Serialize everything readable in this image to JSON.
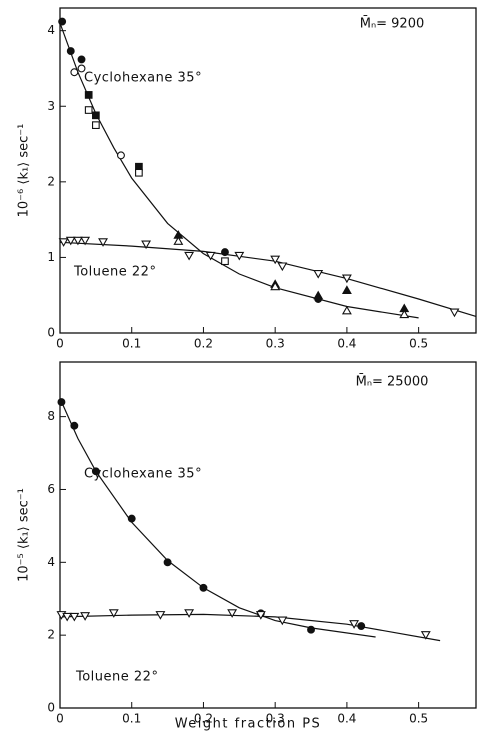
{
  "chart_data": [
    {
      "type": "scatter",
      "annotation": "M̄ₙ= 9200",
      "ylabel": "10⁻⁶ ⟨k₁⟩ sec⁻¹",
      "xlim": [
        0,
        0.58
      ],
      "ylim": [
        0,
        4.3
      ],
      "xticks": [
        0,
        0.1,
        0.2,
        0.3,
        0.4,
        0.5
      ],
      "yticks": [
        0,
        1,
        2,
        3,
        4
      ],
      "series": [
        {
          "name": "Cyclohexane 35°",
          "color": "#111",
          "x": [
            0.003,
            0.015,
            0.02,
            0.03,
            0.03,
            0.04,
            0.04,
            0.05,
            0.05,
            0.085,
            0.11,
            0.11,
            0.165,
            0.165,
            0.23,
            0.23,
            0.3,
            0.3,
            0.36,
            0.36,
            0.4,
            0.4,
            0.48,
            0.48
          ],
          "values": [
            4.12,
            3.73,
            3.45,
            3.62,
            3.5,
            3.15,
            2.95,
            2.88,
            2.75,
            2.35,
            2.2,
            2.12,
            1.3,
            1.22,
            1.07,
            0.95,
            0.65,
            0.62,
            0.5,
            0.45,
            0.57,
            0.3,
            0.33,
            0.25
          ],
          "markers": [
            "filled-circle",
            "filled-circle",
            "open-circle",
            "filled-circle",
            "open-circle",
            "filled-square",
            "open-square",
            "filled-square",
            "open-square",
            "open-circle",
            "filled-square",
            "open-square",
            "filled-triangle",
            "open-triangle",
            "filled-circle",
            "open-square",
            "filled-triangle",
            "open-triangle",
            "filled-triangle",
            "filled-circle",
            "filled-triangle",
            "open-triangle",
            "filled-triangle",
            "open-triangle"
          ],
          "fit_x": [
            0,
            0.025,
            0.05,
            0.075,
            0.1,
            0.15,
            0.2,
            0.25,
            0.3,
            0.4,
            0.5
          ],
          "fit_y": [
            4.1,
            3.45,
            2.9,
            2.45,
            2.05,
            1.45,
            1.05,
            0.78,
            0.6,
            0.35,
            0.2
          ]
        },
        {
          "name": "Toluene 22°",
          "color": "#111",
          "x": [
            0.005,
            0.015,
            0.025,
            0.035,
            0.06,
            0.12,
            0.18,
            0.21,
            0.25,
            0.3,
            0.31,
            0.36,
            0.4,
            0.55
          ],
          "values": [
            1.2,
            1.22,
            1.22,
            1.22,
            1.2,
            1.17,
            1.02,
            1.02,
            1.02,
            0.97,
            0.88,
            0.78,
            0.72,
            0.27
          ],
          "markers": [
            "open-invtriangle",
            "open-invtriangle",
            "open-invtriangle",
            "open-invtriangle",
            "open-invtriangle",
            "open-invtriangle",
            "open-invtriangle",
            "open-invtriangle",
            "open-invtriangle",
            "open-invtriangle",
            "open-invtriangle",
            "open-invtriangle",
            "open-invtriangle",
            "open-invtriangle"
          ],
          "fit_x": [
            0,
            0.1,
            0.2,
            0.3,
            0.4,
            0.5,
            0.58
          ],
          "fit_y": [
            1.2,
            1.15,
            1.08,
            0.95,
            0.72,
            0.45,
            0.22
          ]
        }
      ]
    },
    {
      "type": "scatter",
      "annotation": "M̄ₙ= 25000",
      "ylabel": "10⁻⁵ ⟨k₁⟩ sec⁻¹",
      "xlabel": "Weight fraction PS",
      "xlim": [
        0,
        0.58
      ],
      "ylim": [
        0,
        9.5
      ],
      "xticks": [
        0,
        0.1,
        0.2,
        0.3,
        0.4,
        0.5
      ],
      "yticks": [
        0,
        2,
        4,
        6,
        8
      ],
      "series": [
        {
          "name": "Cyclohexane 35°",
          "color": "#111",
          "x": [
            0.002,
            0.02,
            0.05,
            0.1,
            0.15,
            0.2,
            0.28,
            0.35,
            0.42
          ],
          "values": [
            8.4,
            7.75,
            6.5,
            5.2,
            4.0,
            3.3,
            2.6,
            2.15,
            2.25
          ],
          "markers": [
            "filled-circle",
            "filled-circle",
            "filled-circle",
            "filled-circle",
            "filled-circle",
            "filled-circle",
            "filled-circle",
            "filled-circle",
            "filled-circle"
          ],
          "fit_x": [
            0,
            0.025,
            0.05,
            0.1,
            0.15,
            0.2,
            0.25,
            0.3,
            0.35,
            0.44
          ],
          "fit_y": [
            8.5,
            7.4,
            6.5,
            5.1,
            4.05,
            3.3,
            2.75,
            2.4,
            2.2,
            1.95
          ]
        },
        {
          "name": "Toluene 22°",
          "color": "#111",
          "x": [
            0.002,
            0.01,
            0.02,
            0.035,
            0.075,
            0.14,
            0.18,
            0.24,
            0.28,
            0.31,
            0.41,
            0.51
          ],
          "values": [
            2.55,
            2.5,
            2.5,
            2.52,
            2.6,
            2.55,
            2.6,
            2.6,
            2.55,
            2.4,
            2.3,
            2.0
          ],
          "markers": [
            "open-invtriangle",
            "open-invtriangle",
            "open-invtriangle",
            "open-invtriangle",
            "open-invtriangle",
            "open-invtriangle",
            "open-invtriangle",
            "open-invtriangle",
            "open-invtriangle",
            "open-invtriangle",
            "open-invtriangle",
            "open-invtriangle"
          ],
          "fit_x": [
            0,
            0.1,
            0.2,
            0.3,
            0.4,
            0.53
          ],
          "fit_y": [
            2.5,
            2.55,
            2.57,
            2.5,
            2.3,
            1.85
          ]
        }
      ]
    }
  ]
}
